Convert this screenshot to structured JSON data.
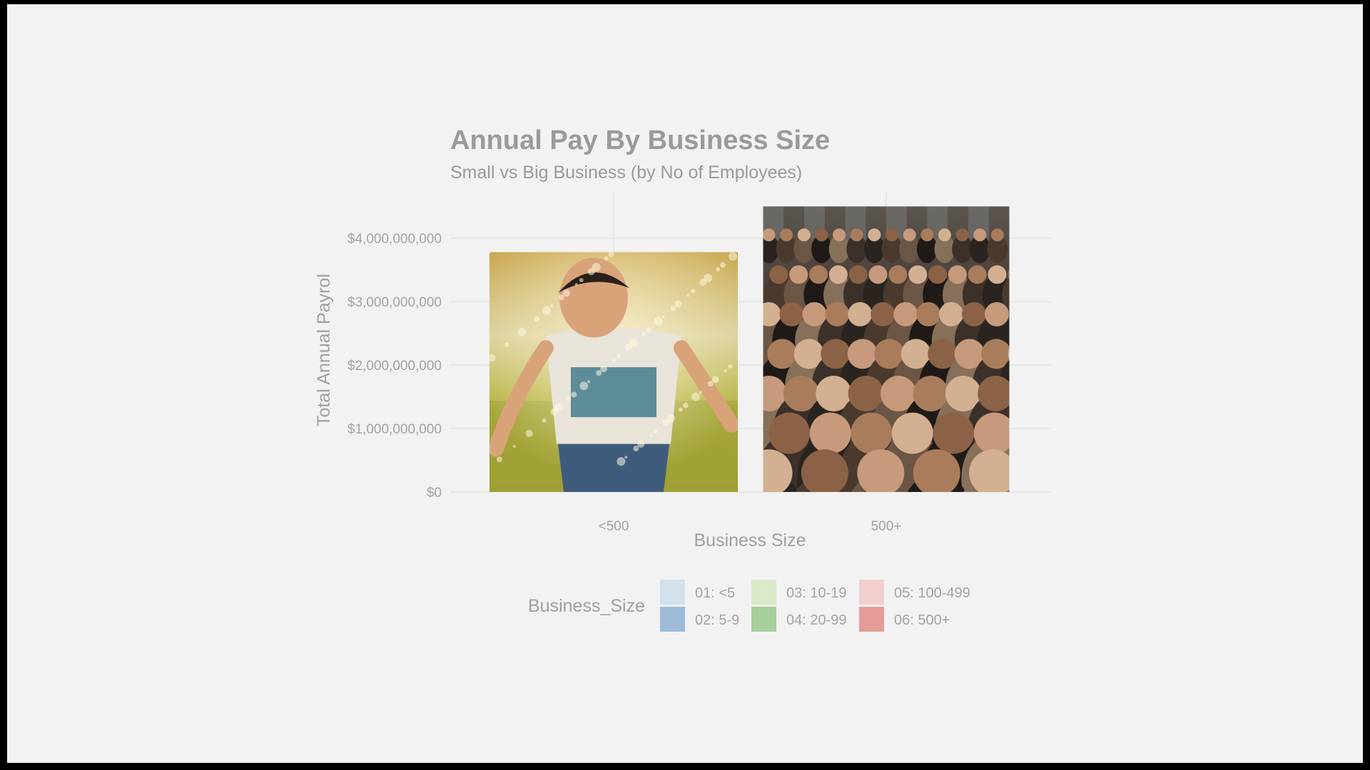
{
  "chart_data": {
    "type": "bar",
    "title": "Annual Pay By Business Size",
    "subtitle": "Small vs Big Business (by No of Employees)",
    "xlabel": "Business Size",
    "ylabel": "Total Annual Payrol",
    "categories": [
      "<500",
      "500+"
    ],
    "values": [
      3780000000,
      4500000000
    ],
    "ylim": [
      0,
      4500000000
    ],
    "yticks": [
      0,
      1000000000,
      2000000000,
      3000000000,
      4000000000
    ],
    "ytick_labels": [
      "$0",
      "$1,000,000,000",
      "$2,000,000,000",
      "$3,000,000,000",
      "$4,000,000,000"
    ],
    "grid": true,
    "bar_fill": [
      "photo: laughing child running through sparkling water",
      "photo: dense crowd of people on a city street"
    ],
    "legend": {
      "title": "Business_Size",
      "position": "bottom",
      "entries": [
        {
          "label": "01: <5",
          "color": "#d2e1ec"
        },
        {
          "label": "02: 5-9",
          "color": "#9fbbd8"
        },
        {
          "label": "03: 10-19",
          "color": "#d9e9c9"
        },
        {
          "label": "04: 20-99",
          "color": "#a6cf9b"
        },
        {
          "label": "05: 100-499",
          "color": "#f2cfcf"
        },
        {
          "label": "06: 500+",
          "color": "#e59c99"
        }
      ]
    }
  }
}
